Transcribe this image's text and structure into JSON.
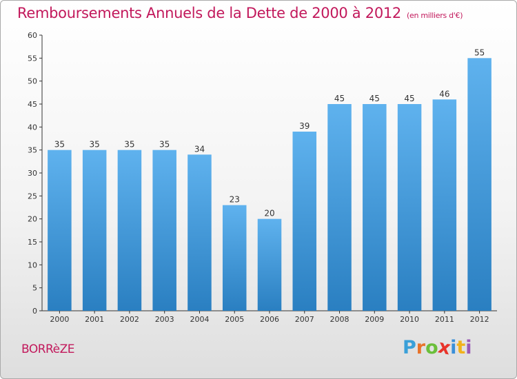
{
  "header": {
    "title": "Remboursements Annuels de la Dette de 2000 à 2012",
    "unit": "(en milliers d'€)"
  },
  "footer": {
    "commune": "BORRèZE",
    "logo_letters": [
      "P",
      "r",
      "o",
      "x",
      "i",
      "t",
      "i"
    ],
    "logo_colors": [
      "#3aa0d8",
      "#e8732a",
      "#6bbf3b",
      "#e8332a",
      "#3a8fd8",
      "#f2b21c",
      "#9b59b6"
    ]
  },
  "colors": {
    "bar_top": "#5fb2ee",
    "bar_bottom": "#2a7fc1",
    "axis": "#333333",
    "grid": "#cccccc"
  },
  "chart_data": {
    "type": "bar",
    "title": "Remboursements Annuels de la Dette de 2000 à 2012",
    "xlabel": "",
    "ylabel": "",
    "categories": [
      "2000",
      "2001",
      "2002",
      "2003",
      "2004",
      "2005",
      "2006",
      "2007",
      "2008",
      "2009",
      "2010",
      "2011",
      "2012"
    ],
    "values": [
      35,
      35,
      35,
      35,
      34,
      23,
      20,
      39,
      45,
      45,
      45,
      46,
      55
    ],
    "ylim": [
      0,
      60
    ],
    "yticks": [
      0,
      5,
      10,
      15,
      20,
      25,
      30,
      35,
      40,
      45,
      50,
      55,
      60
    ],
    "grid": false,
    "legend": "none"
  }
}
